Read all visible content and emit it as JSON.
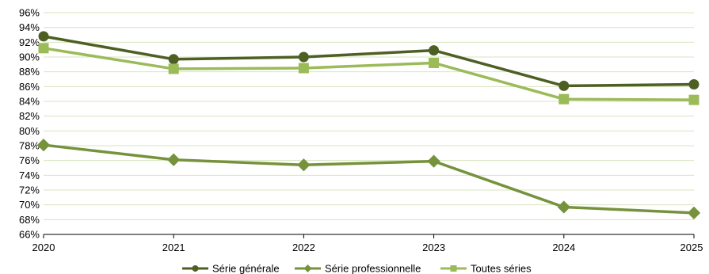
{
  "chart_data": {
    "type": "line",
    "title": "",
    "xlabel": "",
    "ylabel": "",
    "x": [
      "2020",
      "2021",
      "2022",
      "2023",
      "2024",
      "2025"
    ],
    "ylim": [
      66,
      96
    ],
    "ytick_step": 2,
    "ytick_suffix": "%",
    "grid": "horizontal",
    "legend_position": "bottom",
    "series": [
      {
        "name": "Série générale",
        "values": [
          92.8,
          89.7,
          90.0,
          90.9,
          86.1,
          86.3
        ],
        "color": "#4e5f23",
        "marker": "circle"
      },
      {
        "name": "Série professionnelle",
        "values": [
          78.1,
          76.1,
          75.4,
          75.9,
          69.7,
          68.9
        ],
        "color": "#76923c",
        "marker": "diamond"
      },
      {
        "name": "Toutes séries",
        "values": [
          91.2,
          88.4,
          88.5,
          89.2,
          84.3,
          84.2
        ],
        "color": "#9bbb59",
        "marker": "square"
      }
    ],
    "grid_color": "#d7e4bd",
    "axis_color": "#000000"
  }
}
